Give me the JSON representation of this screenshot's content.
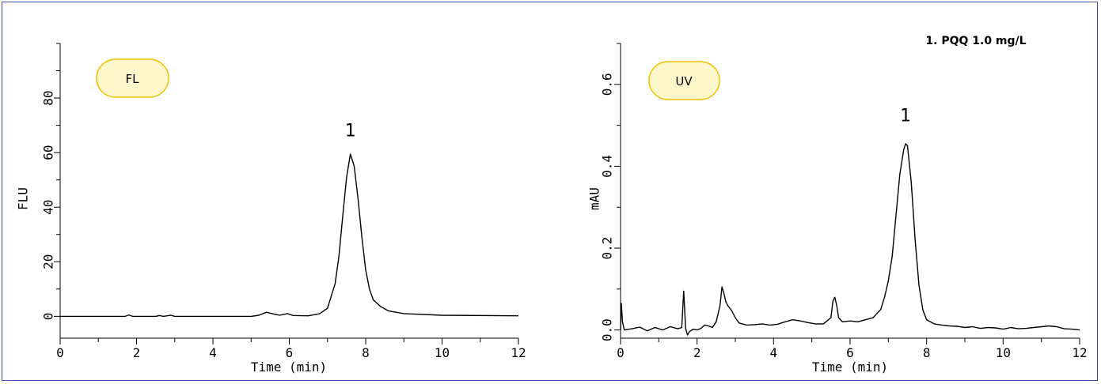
{
  "chart_data": [
    {
      "type": "line",
      "badge": "FL",
      "xlabel": "Time (min)",
      "ylabel": "FLU",
      "xlim": [
        0,
        12
      ],
      "ylim": [
        -8,
        100
      ],
      "x_ticks": [
        0,
        2,
        4,
        6,
        8,
        10,
        12
      ],
      "y_ticks": [
        0,
        20,
        40,
        60,
        80
      ],
      "grid": false,
      "annotations": [
        {
          "text": "1",
          "x": 7.6,
          "y": 66
        }
      ],
      "series": [
        {
          "x": [
            0,
            1.7,
            1.8,
            1.9,
            2.0,
            2.5,
            2.6,
            2.7,
            2.8,
            2.9,
            3.0,
            5.0,
            5.2,
            5.4,
            5.6,
            5.75,
            5.95,
            6.1,
            6.5,
            6.8,
            7.0,
            7.2,
            7.3,
            7.4,
            7.5,
            7.6,
            7.7,
            7.8,
            7.9,
            8.0,
            8.1,
            8.2,
            8.4,
            8.6,
            9.0,
            10.0,
            12.0
          ],
          "y": [
            0,
            0,
            0.5,
            0,
            0,
            0,
            0.3,
            0,
            0.2,
            0.4,
            0,
            0,
            0.4,
            1.5,
            0.8,
            0.4,
            1.0,
            0.3,
            0.2,
            1.0,
            3.0,
            12.0,
            22.0,
            37.0,
            51.0,
            59.5,
            55.0,
            43.0,
            29.0,
            17.0,
            10.0,
            6.0,
            3.5,
            2.0,
            1.0,
            0.4,
            0.2
          ]
        }
      ]
    },
    {
      "type": "line",
      "badge": "UV",
      "legend_text": "1. PQQ 1.0 mg/L",
      "xlabel": "Time (min)",
      "ylabel": "mAU",
      "xlim": [
        0,
        12
      ],
      "ylim": [
        -0.02,
        0.7
      ],
      "x_ticks": [
        0,
        2,
        4,
        6,
        8,
        10,
        12
      ],
      "y_ticks": [
        0.0,
        0.2,
        0.4,
        0.6
      ],
      "y_tick_labels": [
        "0.0",
        "0.2",
        "0.4",
        "0.6"
      ],
      "grid": false,
      "annotations": [
        {
          "text": "1",
          "x": 7.45,
          "y": 0.51
        }
      ],
      "series": [
        {
          "x": [
            0,
            0.02,
            0.05,
            0.1,
            0.3,
            0.5,
            0.7,
            0.9,
            1.1,
            1.3,
            1.5,
            1.6,
            1.65,
            1.7,
            1.75,
            1.8,
            1.9,
            2.0,
            2.1,
            2.2,
            2.3,
            2.4,
            2.5,
            2.6,
            2.65,
            2.7,
            2.75,
            2.8,
            2.9,
            3.0,
            3.1,
            3.3,
            3.5,
            3.7,
            3.9,
            4.1,
            4.3,
            4.5,
            4.7,
            4.9,
            5.1,
            5.3,
            5.5,
            5.55,
            5.6,
            5.65,
            5.7,
            5.8,
            6.0,
            6.2,
            6.4,
            6.6,
            6.8,
            6.9,
            7.0,
            7.1,
            7.2,
            7.3,
            7.4,
            7.45,
            7.5,
            7.6,
            7.7,
            7.8,
            7.9,
            8.0,
            8.2,
            8.4,
            8.6,
            8.8,
            9.0,
            9.2,
            9.4,
            9.6,
            9.8,
            10.0,
            10.2,
            10.4,
            10.6,
            10.8,
            11.0,
            11.2,
            11.4,
            11.6,
            11.8,
            12.0
          ],
          "y": [
            0.0,
            0.065,
            0.02,
            0.0,
            0.003,
            0.007,
            -0.002,
            0.006,
            0.0,
            0.008,
            0.003,
            0.006,
            0.095,
            0.004,
            -0.012,
            -0.004,
            0.002,
            0.0,
            0.004,
            0.012,
            0.01,
            0.006,
            0.02,
            0.06,
            0.105,
            0.09,
            0.07,
            0.06,
            0.048,
            0.03,
            0.017,
            0.012,
            0.013,
            0.015,
            0.012,
            0.014,
            0.02,
            0.025,
            0.022,
            0.018,
            0.015,
            0.015,
            0.03,
            0.07,
            0.08,
            0.06,
            0.03,
            0.02,
            0.022,
            0.02,
            0.025,
            0.03,
            0.05,
            0.08,
            0.12,
            0.18,
            0.28,
            0.38,
            0.44,
            0.455,
            0.45,
            0.36,
            0.22,
            0.11,
            0.05,
            0.025,
            0.015,
            0.012,
            0.01,
            0.009,
            0.006,
            0.008,
            0.004,
            0.006,
            0.005,
            0.002,
            0.006,
            0.003,
            0.004,
            0.006,
            0.008,
            0.01,
            0.008,
            0.003,
            0.002,
            0.0
          ]
        }
      ]
    }
  ]
}
